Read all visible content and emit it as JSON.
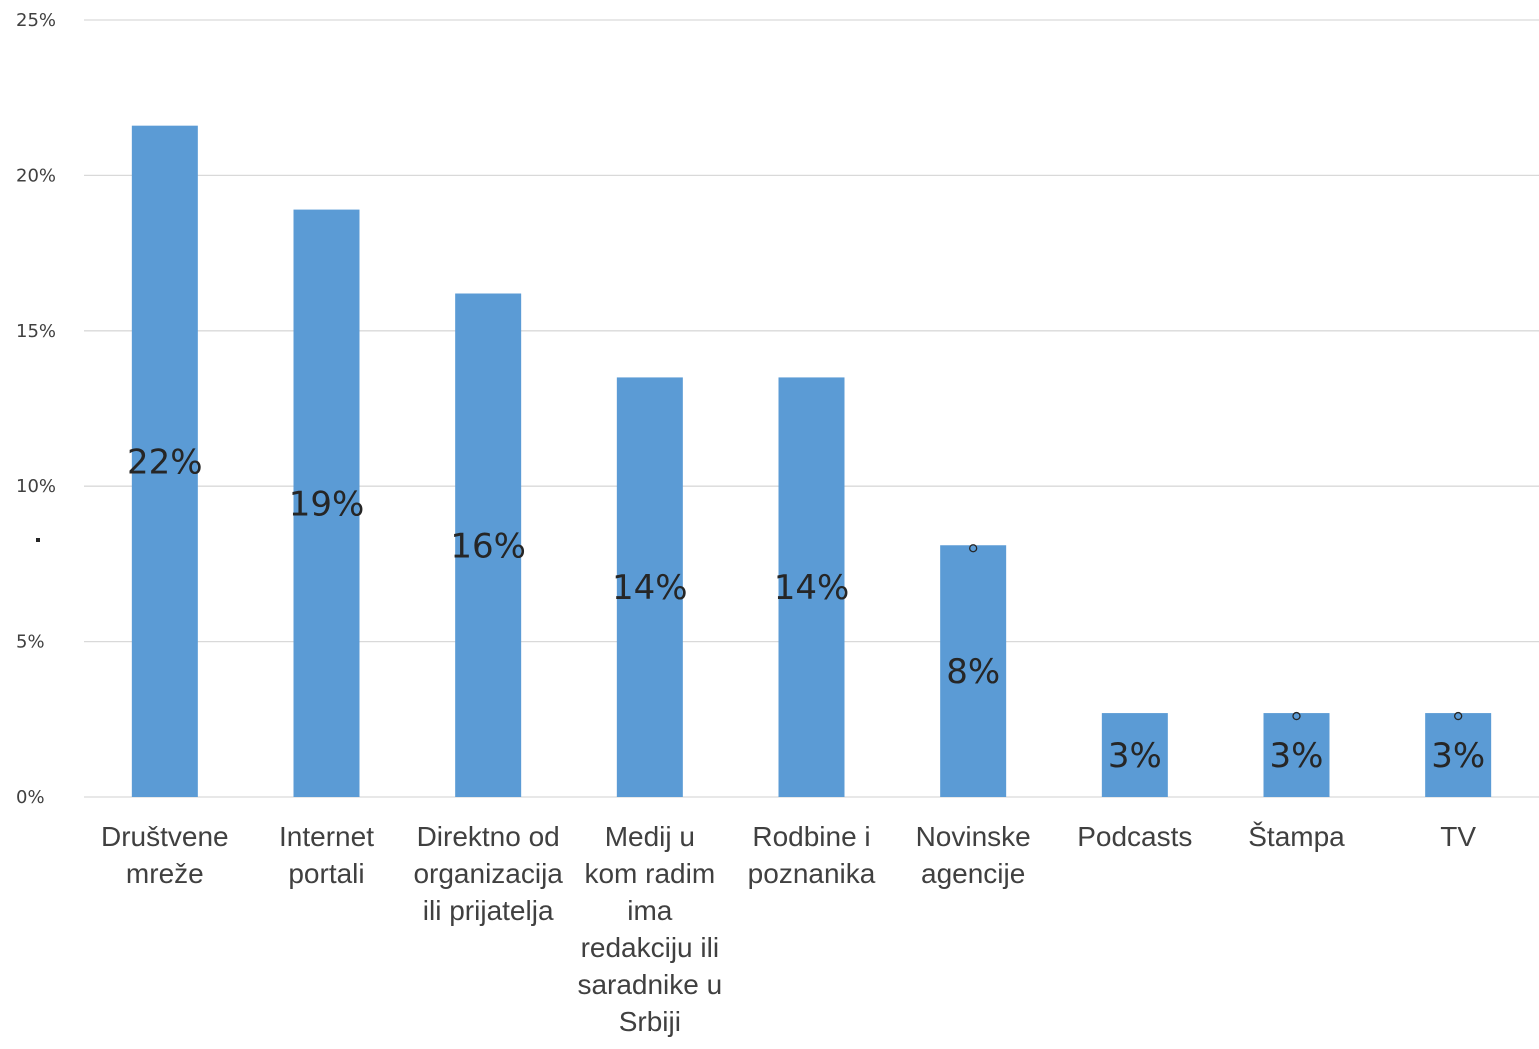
{
  "chart_data": {
    "type": "bar",
    "categories": [
      [
        "Društvene",
        "mreže"
      ],
      [
        "Internet",
        "portali"
      ],
      [
        "Direktno od",
        "organizacija",
        "ili prijatelja"
      ],
      [
        "Medij u",
        "kom radim",
        "ima",
        "redakciju ili",
        "saradnike u",
        "Srbiji"
      ],
      [
        "Rodbine i",
        "poznanika"
      ],
      [
        "Novinske",
        "agencije"
      ],
      [
        "Podcasts"
      ],
      [
        "Štampa"
      ],
      [
        "TV"
      ]
    ],
    "values": [
      21.6,
      18.9,
      16.2,
      13.5,
      13.5,
      8.1,
      2.7,
      2.7,
      2.7
    ],
    "data_labels": [
      "22%",
      "19%",
      "16%",
      "14%",
      "14%",
      "8%",
      "3%",
      "3%",
      "3%"
    ],
    "ylim": [
      0,
      25
    ],
    "yticks": [
      0,
      5,
      10,
      15,
      20,
      25
    ],
    "ytick_labels": [
      "0%",
      "5%",
      "10%",
      "15%",
      "20%",
      "25%"
    ],
    "grid": true,
    "legend": "none",
    "colors": {
      "bar": "#5b9bd5",
      "grid": "#d9d9d9",
      "text": "#404040"
    },
    "title": "",
    "xlabel": "",
    "ylabel": ""
  }
}
